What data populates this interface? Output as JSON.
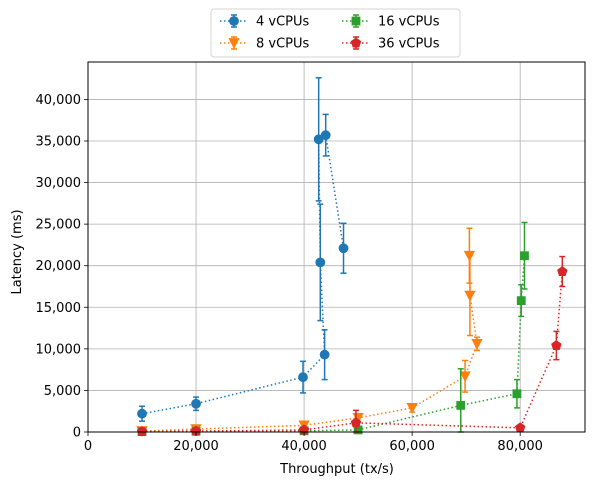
{
  "chart_data": {
    "type": "line",
    "title": "",
    "xlabel": "Throughput (tx/s)",
    "ylabel": "Latency (ms)",
    "xlim": [
      0,
      92000
    ],
    "ylim": [
      0,
      44500
    ],
    "x_ticks": [
      0,
      20000,
      40000,
      60000,
      80000
    ],
    "x_tick_labels": [
      "0",
      "20,000",
      "40,000",
      "60,000",
      "80,000"
    ],
    "y_ticks": [
      0,
      5000,
      10000,
      15000,
      20000,
      25000,
      30000,
      35000,
      40000
    ],
    "y_tick_labels": [
      "0",
      "5,000",
      "10,000",
      "15,000",
      "20,000",
      "25,000",
      "30,000",
      "35,000",
      "40,000"
    ],
    "grid": true,
    "legend_position": "top-center",
    "series": [
      {
        "name": "4 vCPUs",
        "color": "#1f77b4",
        "marker": "circle",
        "points": [
          {
            "x": 10000,
            "y": 2200,
            "err": 900
          },
          {
            "x": 20000,
            "y": 3400,
            "err": 800
          },
          {
            "x": 39800,
            "y": 6600,
            "err": 1900
          },
          {
            "x": 43800,
            "y": 9300,
            "err": 3000
          },
          {
            "x": 43000,
            "y": 20400,
            "err": 7000
          },
          {
            "x": 42700,
            "y": 35200,
            "err": 7400
          },
          {
            "x": 44000,
            "y": 35700,
            "err": 2500
          },
          {
            "x": 47300,
            "y": 22100,
            "err": 3000
          }
        ]
      },
      {
        "name": "8 vCPUs",
        "color": "#ff7f0e",
        "marker": "triangle-down",
        "points": [
          {
            "x": 10000,
            "y": 100,
            "err": 100
          },
          {
            "x": 20000,
            "y": 350,
            "err": 150
          },
          {
            "x": 40000,
            "y": 800,
            "err": 300
          },
          {
            "x": 50000,
            "y": 1700,
            "err": 500
          },
          {
            "x": 60000,
            "y": 2900,
            "err": 500
          },
          {
            "x": 69800,
            "y": 6700,
            "err": 1900
          },
          {
            "x": 72000,
            "y": 10600,
            "err": 800
          },
          {
            "x": 70700,
            "y": 16400,
            "err": 4800
          },
          {
            "x": 70600,
            "y": 21200,
            "err": 3300
          }
        ]
      },
      {
        "name": "16 vCPUs",
        "color": "#2ca02c",
        "marker": "square",
        "points": [
          {
            "x": 10000,
            "y": 50,
            "err": 50
          },
          {
            "x": 20000,
            "y": 100,
            "err": 50
          },
          {
            "x": 40000,
            "y": 150,
            "err": 100
          },
          {
            "x": 50000,
            "y": 250,
            "err": 150
          },
          {
            "x": 69000,
            "y": 3200,
            "err": 4400
          },
          {
            "x": 79400,
            "y": 4600,
            "err": 1700
          },
          {
            "x": 80200,
            "y": 15800,
            "err": 1900
          },
          {
            "x": 80800,
            "y": 21200,
            "err": 4000
          }
        ]
      },
      {
        "name": "36 vCPUs",
        "color": "#d62728",
        "marker": "pentagon",
        "points": [
          {
            "x": 10000,
            "y": 50,
            "err": 50
          },
          {
            "x": 20000,
            "y": 100,
            "err": 50
          },
          {
            "x": 40000,
            "y": 250,
            "err": 100
          },
          {
            "x": 49600,
            "y": 1100,
            "err": 1500
          },
          {
            "x": 80000,
            "y": 500,
            "err": 100
          },
          {
            "x": 86700,
            "y": 10400,
            "err": 1700
          },
          {
            "x": 87800,
            "y": 19300,
            "err": 1800
          }
        ]
      }
    ]
  }
}
